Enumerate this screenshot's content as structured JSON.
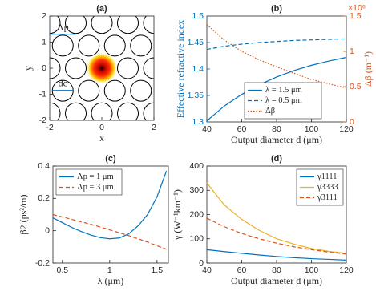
{
  "chart_data": [
    {
      "type": "image",
      "title": "(a)",
      "xlabel": "x",
      "ylabel": "y",
      "xlim": [
        -2,
        2
      ],
      "ylim": [
        -2,
        2
      ],
      "xticks": [
        -2,
        0,
        2
      ],
      "yticks": [
        -2,
        -1,
        0,
        1,
        2
      ],
      "annotations": [
        "Λp",
        "dc"
      ]
    },
    {
      "type": "line",
      "title": "(b)",
      "xlabel": "Output diameter d (μm)",
      "ylabel": "Effective refractive index",
      "y2label": "Δβ (m⁻¹)",
      "y2_multiplier_label": "×10⁶",
      "x": [
        40,
        50,
        60,
        70,
        80,
        90,
        100,
        110,
        120
      ],
      "xlim": [
        40,
        120
      ],
      "xticks": [
        40,
        60,
        80,
        100,
        120
      ],
      "ylim": [
        1.3,
        1.5
      ],
      "yticks": [
        1.3,
        1.35,
        1.4,
        1.45,
        1.5
      ],
      "y2lim": [
        0,
        1.5
      ],
      "y2ticks": [
        0,
        0.5,
        1,
        1.5
      ],
      "ycolor": "#0072bd",
      "y2color": "#d95319",
      "legend": "lower-center",
      "series": [
        {
          "name": "λ = 1.5 μm",
          "color": "#0072bd",
          "linestyle": "solid",
          "values": [
            1.302,
            1.33,
            1.352,
            1.37,
            1.385,
            1.397,
            1.407,
            1.415,
            1.422
          ]
        },
        {
          "name": "λ = 0.5 μm",
          "color": "#0072bd",
          "linestyle": "dashed",
          "values": [
            1.437,
            1.443,
            1.447,
            1.45,
            1.452,
            1.454,
            1.455,
            1.456,
            1.457
          ]
        },
        {
          "name": "Δβ",
          "color": "#d95319",
          "linestyle": "dotted",
          "axis": "y2",
          "values": [
            1.38,
            1.16,
            1.0,
            0.88,
            0.78,
            0.69,
            0.6,
            0.54,
            0.48
          ]
        }
      ]
    },
    {
      "type": "line",
      "title": "(c)",
      "xlabel": "λ (μm)",
      "ylabel": "β2 (ps²/m)",
      "x": [
        0.4,
        0.5,
        0.6,
        0.7,
        0.8,
        0.9,
        1.0,
        1.1,
        1.2,
        1.3,
        1.4,
        1.5,
        1.6
      ],
      "xlim": [
        0.4,
        1.62
      ],
      "xticks": [
        0.5,
        1,
        1.5
      ],
      "ylim": [
        -0.2,
        0.4
      ],
      "yticks": [
        -0.2,
        0,
        0.2,
        0.4
      ],
      "legend": "upper-left",
      "series": [
        {
          "name": "Λp = 1 μm",
          "color": "#0072bd",
          "linestyle": "solid",
          "values": [
            0.08,
            0.05,
            0.02,
            -0.005,
            -0.027,
            -0.043,
            -0.05,
            -0.045,
            -0.02,
            0.03,
            0.1,
            0.21,
            0.37
          ]
        },
        {
          "name": "Λp = 3 μm",
          "color": "#d95319",
          "linestyle": "dashed",
          "values": [
            0.1,
            0.085,
            0.07,
            0.055,
            0.04,
            0.023,
            0.005,
            -0.012,
            -0.03,
            -0.05,
            -0.07,
            -0.093,
            -0.115
          ]
        }
      ]
    },
    {
      "type": "line",
      "title": "(d)",
      "xlabel": "Output diameter d (μm)",
      "ylabel": "γ (W⁻¹km⁻¹)",
      "x": [
        40,
        50,
        60,
        70,
        80,
        90,
        100,
        110,
        120
      ],
      "xlim": [
        40,
        120
      ],
      "xticks": [
        40,
        60,
        80,
        100,
        120
      ],
      "ylim": [
        0,
        400
      ],
      "yticks": [
        0,
        100,
        200,
        300,
        400
      ],
      "legend": "upper-right",
      "series": [
        {
          "name": "γ1111",
          "color": "#0072bd",
          "linestyle": "solid",
          "values": [
            55,
            47,
            40,
            33,
            27,
            22,
            18,
            15,
            12
          ]
        },
        {
          "name": "γ3333",
          "color": "#edb120",
          "linestyle": "solid",
          "values": [
            330,
            240,
            180,
            135,
            100,
            78,
            60,
            48,
            40
          ]
        },
        {
          "name": "γ3111",
          "color": "#d95319",
          "linestyle": "dashed",
          "values": [
            185,
            150,
            122,
            100,
            82,
            67,
            55,
            45,
            37
          ]
        }
      ]
    }
  ]
}
